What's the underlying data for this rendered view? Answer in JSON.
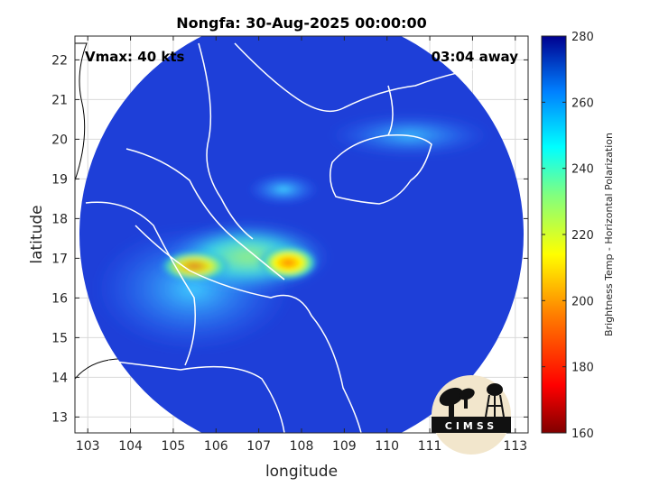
{
  "chart_data": {
    "type": "heatmap",
    "title": "Nongfa: 30-Aug-2025 00:00:00",
    "xlabel": "longitude",
    "ylabel": "latitude",
    "xlim": [
      102.7,
      113.3
    ],
    "ylim": [
      12.6,
      22.6
    ],
    "x_ticks": [
      103,
      104,
      105,
      106,
      107,
      108,
      109,
      110,
      111,
      112,
      113
    ],
    "y_ticks": [
      13,
      14,
      15,
      16,
      17,
      18,
      19,
      20,
      21,
      22
    ],
    "grid": true,
    "annotations": {
      "left": "Vmax: 40 kts",
      "right": "03:04 away"
    },
    "colorbar": {
      "label": "Brightness Temp - Horizontal Polarization",
      "min": 160,
      "max": 280,
      "ticks": [
        160,
        180,
        200,
        220,
        240,
        260,
        280
      ]
    },
    "storm_center": {
      "lon": 107.9,
      "lat": 17.0,
      "value": 190
    },
    "coverage_center": {
      "lon": 108.0,
      "lat": 17.6
    },
    "logo_text": "CIMSS"
  }
}
